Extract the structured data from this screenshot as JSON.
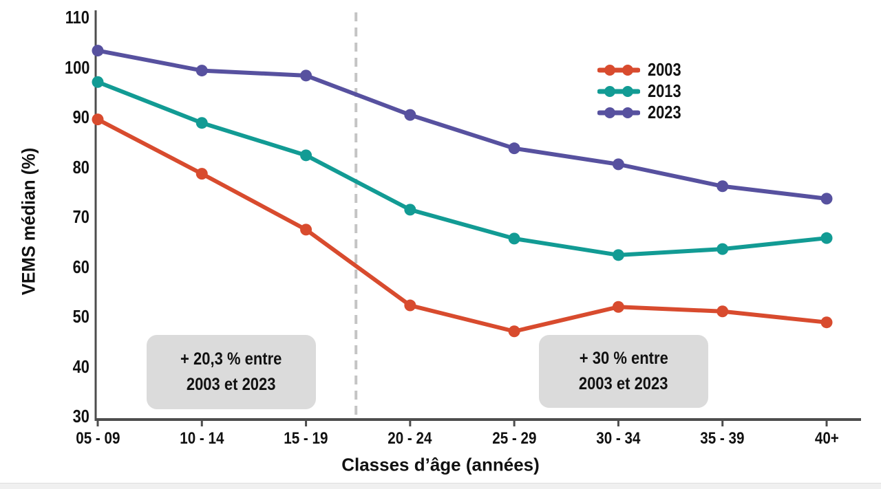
{
  "chart_data": {
    "type": "line",
    "title": "",
    "xlabel": "Classes d’âge (années)",
    "ylabel": "VEMS médian (%)",
    "categories": [
      "05 - 09",
      "10 - 14",
      "15 - 19",
      "20 - 24",
      "25 - 29",
      "30 - 34",
      "35 - 39",
      "40+"
    ],
    "series": [
      {
        "name": "2003",
        "color": "#d84b2e",
        "values": [
          89.5,
          78.6,
          67.4,
          52.2,
          47.0,
          51.9,
          51.0,
          48.8
        ]
      },
      {
        "name": "2013",
        "color": "#129b94",
        "values": [
          97.0,
          88.8,
          82.3,
          71.4,
          65.6,
          62.3,
          63.5,
          65.7
        ]
      },
      {
        "name": "2023",
        "color": "#57519f",
        "values": [
          103.3,
          99.3,
          98.3,
          90.4,
          83.7,
          80.5,
          76.1,
          73.6
        ]
      }
    ],
    "ylim": [
      30,
      110
    ],
    "yticks": [
      30,
      40,
      50,
      60,
      70,
      80,
      90,
      100,
      110
    ],
    "grid": false,
    "legend_position": "top-right",
    "divider_dashed_between": [
      "15 - 19",
      "20 - 24"
    ],
    "annotations": [
      {
        "line1": "+ 20,3 % entre",
        "line2": "2003 et 2023"
      },
      {
        "line1": "+ 30 % entre",
        "line2": "2003 et 2023"
      }
    ]
  },
  "colors": {
    "axis": "#4d4d4d",
    "dashed_divider": "#c4c4c4",
    "annotation_bg": "#dbdbdb",
    "text": "#111111",
    "bottom_strip": "#f0f0f0"
  }
}
